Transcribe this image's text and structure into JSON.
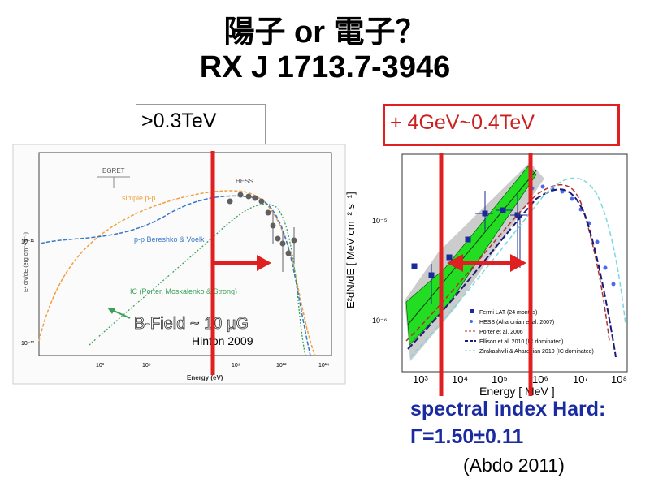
{
  "slide": {
    "title_line1": "陽子 or 電子？",
    "title_line2": "RX J 1713.7-3946",
    "left_label": ">0.3TeV",
    "right_label": "+ 4GeV~0.4TeV",
    "spectral_line1": "spectral index Hard:",
    "spectral_line2": "Γ=1.50±0.11",
    "citation": "(Abdo 2011)"
  },
  "left_plot": {
    "ylabel": "E² dN/dE (erg cm⁻² s⁻¹)",
    "xlabel": "Energy (eV)",
    "x_ticks": [
      "10³",
      "10⁶",
      "10⁹",
      "10¹²",
      "10¹⁴"
    ],
    "y_ticks": [
      "10⁻¹¹",
      "10⁻¹²"
    ],
    "egret": "EGRET",
    "hess": "HESS",
    "model_simple_pp": "simple p-p",
    "model_bereshko": "p-p Bereshko & Voelk",
    "model_ic": "IC (Porter, Moskalenko & Strong)",
    "bfield": "B-Field ~ 10 μG",
    "author": "Hinton 2009",
    "colors": {
      "simple_pp": "#f0a040",
      "bereshko": "#3a78c8",
      "ic": "#3aa05a",
      "data": "#606060"
    }
  },
  "right_plot": {
    "ylabel": "E²dN/dE [ MeV cm⁻² s⁻¹]",
    "xlabel": "Energy [ MeV ]",
    "x_ticks": [
      "10³",
      "10⁴",
      "10⁵",
      "10⁶",
      "10⁷",
      "10⁸"
    ],
    "y_ticks": [
      "10⁻⁵",
      "10⁻⁶"
    ],
    "legend": [
      {
        "text": "Fermi LAT (24 months)",
        "color": "#1a2a9a"
      },
      {
        "text": "HESS (Aharonian et al. 2007)",
        "color": "#4a6aea"
      },
      {
        "text": "Porter et al. 2006",
        "color": "#b03030"
      },
      {
        "text": "Ellison et al. 2010 (IC dominated)",
        "color": "#1a1a7a"
      },
      {
        "text": "Zirakashvili & Aharonian 2010 (IC dominated)",
        "color": "#7ad8e0"
      }
    ],
    "colors": {
      "band": "#22dd22",
      "band_outer": "#aaaaaa",
      "fermi": "#1a2a9a",
      "hess": "#4a6aea"
    }
  },
  "annotations": {
    "marker_color": "#e02020"
  }
}
